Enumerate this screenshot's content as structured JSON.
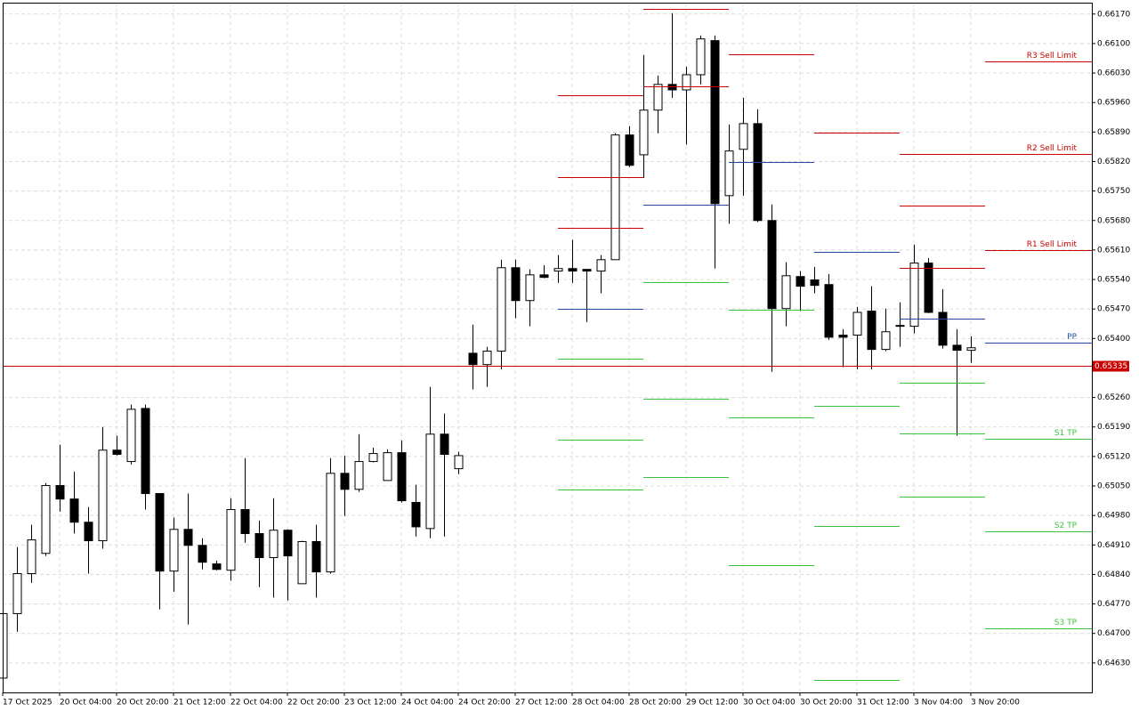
{
  "chart_data": {
    "type": "candlestick",
    "ylim": [
      0.6456,
      0.66197
    ],
    "xlim": [
      0,
      76.5
    ],
    "grid": true,
    "up_color": "#ffffff",
    "down_color": "#000000",
    "yticks": [
      {
        "value": 0.6617,
        "label": "0.66170"
      },
      {
        "value": 0.661,
        "label": "0.66100"
      },
      {
        "value": 0.6603,
        "label": "0.66030"
      },
      {
        "value": 0.6596,
        "label": "0.65960"
      },
      {
        "value": 0.6589,
        "label": "0.65890"
      },
      {
        "value": 0.6582,
        "label": "0.65820"
      },
      {
        "value": 0.6575,
        "label": "0.65750"
      },
      {
        "value": 0.6568,
        "label": "0.65680"
      },
      {
        "value": 0.6561,
        "label": "0.65610"
      },
      {
        "value": 0.6554,
        "label": "0.65540"
      },
      {
        "value": 0.6547,
        "label": "0.65470"
      },
      {
        "value": 0.654,
        "label": "0.65400"
      },
      {
        "value": 0.6526,
        "label": "0.65260"
      },
      {
        "value": 0.6519,
        "label": "0.65190"
      },
      {
        "value": 0.6512,
        "label": "0.65120"
      },
      {
        "value": 0.6505,
        "label": "0.65050"
      },
      {
        "value": 0.6498,
        "label": "0.64980"
      },
      {
        "value": 0.6491,
        "label": "0.64910"
      },
      {
        "value": 0.6484,
        "label": "0.64840"
      },
      {
        "value": 0.6477,
        "label": "0.64770"
      },
      {
        "value": 0.647,
        "label": "0.64700"
      },
      {
        "value": 0.6463,
        "label": "0.64630"
      }
    ],
    "xticks": [
      {
        "value": 0,
        "label": "17 Oct 2025"
      },
      {
        "value": 4,
        "label": "20 Oct 04:00"
      },
      {
        "value": 8,
        "label": "20 Oct 20:00"
      },
      {
        "value": 12,
        "label": "21 Oct 12:00"
      },
      {
        "value": 16,
        "label": "22 Oct 04:00"
      },
      {
        "value": 20,
        "label": "22 Oct 20:00"
      },
      {
        "value": 24,
        "label": "23 Oct 12:00"
      },
      {
        "value": 28,
        "label": "24 Oct 04:00"
      },
      {
        "value": 32,
        "label": "24 Oct 20:00"
      },
      {
        "value": 36,
        "label": "27 Oct 12:00"
      },
      {
        "value": 40,
        "label": "28 Oct 04:00"
      },
      {
        "value": 44,
        "label": "28 Oct 20:00"
      },
      {
        "value": 48,
        "label": "29 Oct 12:00"
      },
      {
        "value": 52,
        "label": "30 Oct 04:00"
      },
      {
        "value": 56,
        "label": "30 Oct 20:00"
      },
      {
        "value": 60,
        "label": "31 Oct 12:00"
      },
      {
        "value": 64,
        "label": "3 Nov 04:00"
      },
      {
        "value": 68,
        "label": "3 Nov 20:00"
      }
    ],
    "open": [
      0.64594,
      0.64747,
      0.64842,
      0.6489,
      0.65051,
      0.65019,
      0.64964,
      0.6492,
      0.65135,
      0.65108,
      0.65234,
      0.65032,
      0.64848,
      0.64947,
      0.64909,
      0.64865,
      0.6485,
      0.64994,
      0.64937,
      0.6488,
      0.64945,
      0.64818,
      0.64918,
      0.64846,
      0.6508,
      0.65042,
      0.65108,
      0.65063,
      0.65129,
      0.65011,
      0.64949,
      0.65173,
      0.65091,
      0.65365,
      0.65338,
      0.6537,
      0.65568,
      0.6549,
      0.65551,
      0.6556,
      0.65566,
      0.65564,
      0.6556,
      0.65587,
      0.65883,
      0.65836,
      0.65942,
      0.66003,
      0.6599,
      0.66026,
      0.66107,
      0.65739,
      0.65849,
      0.6591,
      0.6568,
      0.65471,
      0.65547,
      0.65539,
      0.65528,
      0.65408,
      0.65408,
      0.65465,
      0.65374,
      0.65431,
      0.65429,
      0.65579,
      0.65462,
      0.65384,
      0.65372
    ],
    "high": [
      0.64751,
      0.64905,
      0.64958,
      0.65057,
      0.65148,
      0.65084,
      0.65,
      0.6519,
      0.65169,
      0.65243,
      0.65243,
      0.65032,
      0.64975,
      0.65032,
      0.64926,
      0.64873,
      0.65021,
      0.65116,
      0.64968,
      0.65021,
      0.64947,
      0.6492,
      0.64958,
      0.65116,
      0.65122,
      0.65173,
      0.65141,
      0.65137,
      0.65158,
      0.65053,
      0.65285,
      0.65222,
      0.65131,
      0.65433,
      0.6538,
      0.65587,
      0.65587,
      0.65564,
      0.65574,
      0.65598,
      0.65634,
      0.65564,
      0.65598,
      0.65887,
      0.65904,
      0.66073,
      0.66024,
      0.66172,
      0.66045,
      0.66119,
      0.66119,
      0.65908,
      0.65971,
      0.65944,
      0.65718,
      0.65581,
      0.6556,
      0.6557,
      0.65553,
      0.65422,
      0.65475,
      0.65524,
      0.65471,
      0.65486,
      0.65623,
      0.65591,
      0.65517,
      0.65422,
      0.65405
    ],
    "low": [
      0.64588,
      0.64704,
      0.6482,
      0.64884,
      0.64989,
      0.64937,
      0.64842,
      0.64901,
      0.65122,
      0.65101,
      0.64994,
      0.64757,
      0.64799,
      0.64721,
      0.64852,
      0.6485,
      0.64825,
      0.64915,
      0.6481,
      0.64785,
      0.64778,
      0.64818,
      0.64785,
      0.64842,
      0.64979,
      0.65036,
      0.65106,
      0.65063,
      0.65011,
      0.6493,
      0.64926,
      0.6493,
      0.65078,
      0.65279,
      0.65285,
      0.65327,
      0.65448,
      0.65429,
      0.65543,
      0.65532,
      0.65532,
      0.65439,
      0.65507,
      0.65587,
      0.65807,
      0.65781,
      0.65887,
      0.65971,
      0.6586,
      0.66003,
      0.65566,
      0.65672,
      0.65739,
      0.65676,
      0.65321,
      0.65429,
      0.65465,
      0.65507,
      0.65397,
      0.65332,
      0.65327,
      0.65327,
      0.6537,
      0.6538,
      0.65412,
      0.6546,
      0.65376,
      0.65169,
      0.65342
    ],
    "close": [
      0.64747,
      0.64842,
      0.64922,
      0.65051,
      0.65019,
      0.64964,
      0.6492,
      0.65135,
      0.65125,
      0.65232,
      0.65032,
      0.64848,
      0.64947,
      0.64909,
      0.64869,
      0.64852,
      0.64994,
      0.64937,
      0.6488,
      0.64945,
      0.64884,
      0.64918,
      0.64846,
      0.6508,
      0.65042,
      0.65108,
      0.65127,
      0.65129,
      0.65015,
      0.64953,
      0.65173,
      0.65125,
      0.65122,
      0.65338,
      0.6537,
      0.65568,
      0.6549,
      0.65551,
      0.65545,
      0.65566,
      0.6556,
      0.6556,
      0.65587,
      0.65883,
      0.65811,
      0.65942,
      0.66003,
      0.6599,
      0.66026,
      0.66111,
      0.6572,
      0.65845,
      0.6591,
      0.6568,
      0.65471,
      0.65549,
      0.65524,
      0.65526,
      0.65403,
      0.65403,
      0.65462,
      0.65374,
      0.65416,
      0.65429,
      0.65579,
      0.65462,
      0.65384,
      0.65372,
      0.65378
    ],
    "current_price": 0.65335,
    "current_color": "#c80000",
    "levels": [
      {
        "x": [
          39,
          45
        ],
        "price": 0.65978,
        "color": "#c80000"
      },
      {
        "x": [
          39,
          45
        ],
        "price": 0.65783,
        "color": "#c80000"
      },
      {
        "x": [
          39,
          45
        ],
        "price": 0.65663,
        "color": "#c80000"
      },
      {
        "x": [
          39,
          45
        ],
        "price": 0.65471,
        "color": "#1f4e9c"
      },
      {
        "x": [
          39,
          45
        ],
        "price": 0.65353,
        "color": "#3fbf3f"
      },
      {
        "x": [
          39,
          45
        ],
        "price": 0.6516,
        "color": "#3fbf3f"
      },
      {
        "x": [
          39,
          45
        ],
        "price": 0.65042,
        "color": "#3fbf3f"
      },
      {
        "x": [
          45,
          51
        ],
        "price": 0.66183,
        "color": "#c80000"
      },
      {
        "x": [
          45,
          51
        ],
        "price": 0.65999,
        "color": "#c80000"
      },
      {
        "x": [
          45,
          51
        ],
        "price": 0.65718,
        "color": "#1f4e9c"
      },
      {
        "x": [
          45,
          51
        ],
        "price": 0.65534,
        "color": "#3fbf3f"
      },
      {
        "x": [
          45,
          51
        ],
        "price": 0.65256,
        "color": "#3fbf3f"
      },
      {
        "x": [
          45,
          51
        ],
        "price": 0.65072,
        "color": "#3fbf3f"
      },
      {
        "x": [
          51,
          57
        ],
        "price": 0.66075,
        "color": "#c80000"
      },
      {
        "x": [
          51,
          57
        ],
        "price": 0.65819,
        "color": "#1f4e9c"
      },
      {
        "x": [
          51,
          57
        ],
        "price": 0.65469,
        "color": "#3fbf3f"
      },
      {
        "x": [
          51,
          57
        ],
        "price": 0.65213,
        "color": "#3fbf3f"
      },
      {
        "x": [
          51,
          57
        ],
        "price": 0.64861,
        "color": "#3fbf3f"
      },
      {
        "x": [
          57,
          63
        ],
        "price": 0.65889,
        "color": "#c80000"
      },
      {
        "x": [
          57,
          63
        ],
        "price": 0.65606,
        "color": "#1f4e9c"
      },
      {
        "x": [
          57,
          63
        ],
        "price": 0.65241,
        "color": "#3fbf3f"
      },
      {
        "x": [
          57,
          63
        ],
        "price": 0.64956,
        "color": "#3fbf3f"
      },
      {
        "x": [
          57,
          63
        ],
        "price": 0.6459,
        "color": "#3fbf3f"
      },
      {
        "x": [
          63,
          69
        ],
        "price": 0.65838,
        "color": "#c80000"
      },
      {
        "x": [
          63,
          69
        ],
        "price": 0.65716,
        "color": "#c80000"
      },
      {
        "x": [
          63,
          69
        ],
        "price": 0.65568,
        "color": "#c80000"
      },
      {
        "x": [
          63,
          69
        ],
        "price": 0.65448,
        "color": "#1f4e9c"
      },
      {
        "x": [
          63,
          69
        ],
        "price": 0.65296,
        "color": "#3fbf3f"
      },
      {
        "x": [
          63,
          69
        ],
        "price": 0.65175,
        "color": "#3fbf3f"
      },
      {
        "x": [
          63,
          69
        ],
        "price": 0.65025,
        "color": "#3fbf3f"
      },
      {
        "x": [
          69,
          76.5
        ],
        "price": 0.66058,
        "color": "#c80000",
        "label": "R3 Sell Limit"
      },
      {
        "x": [
          69,
          76.5
        ],
        "price": 0.65838,
        "color": "#c80000",
        "label": "R2 Sell Limit"
      },
      {
        "x": [
          69,
          76.5
        ],
        "price": 0.6561,
        "color": "#c80000",
        "label": "R1 Sell Limit"
      },
      {
        "x": [
          69,
          76.5
        ],
        "price": 0.65391,
        "color": "#1f4e9c",
        "label": "PP"
      },
      {
        "x": [
          69,
          76.5
        ],
        "price": 0.65163,
        "color": "#3fbf3f",
        "label": "S1 TP"
      },
      {
        "x": [
          69,
          76.5
        ],
        "price": 0.64943,
        "color": "#3fbf3f",
        "label": "S2 TP"
      },
      {
        "x": [
          69,
          76.5
        ],
        "price": 0.64713,
        "color": "#3fbf3f",
        "label": "S3 TP"
      }
    ]
  }
}
